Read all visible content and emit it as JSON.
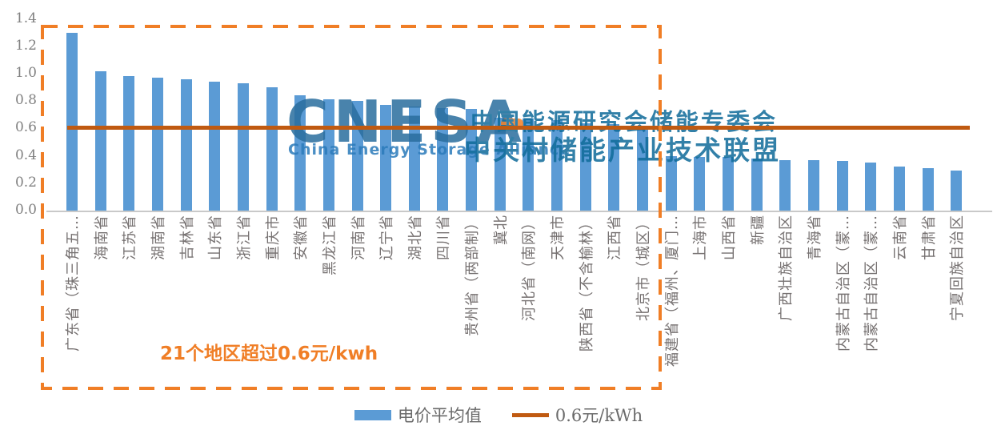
{
  "chart_data": {
    "type": "bar",
    "title": "",
    "categories": [
      "广东省（珠三角五…",
      "海南省",
      "江苏省",
      "湖南省",
      "吉林省",
      "山东省",
      "浙江省",
      "重庆市",
      "安徽省",
      "黑龙江省",
      "河南省",
      "辽宁省",
      "湖北省",
      "四川省",
      "贵州省（两部制）",
      "冀北",
      "河北省（南网）",
      "天津市",
      "陕西省（不含榆林）",
      "江西省",
      "北京市（城区）",
      "福建省（福州、厦门…",
      "上海市",
      "山西省",
      "新疆",
      "广西壮族自治区",
      "青海省",
      "内蒙古自治区（蒙…",
      "内蒙古自治区（蒙…",
      "云南省",
      "甘肃省",
      "宁夏回族自治区"
    ],
    "values": [
      1.3,
      1.02,
      0.98,
      0.97,
      0.96,
      0.94,
      0.93,
      0.9,
      0.84,
      0.81,
      0.8,
      0.77,
      0.76,
      0.75,
      0.74,
      0.68,
      0.67,
      0.66,
      0.64,
      0.63,
      0.62,
      0.4,
      0.39,
      0.39,
      0.38,
      0.37,
      0.37,
      0.36,
      0.35,
      0.32,
      0.31,
      0.29
    ],
    "xlabel": "",
    "ylabel": "",
    "ylim": [
      0,
      1.4
    ],
    "y_ticks": [
      "0.0",
      "0.2",
      "0.4",
      "0.6",
      "0.8",
      "1.0",
      "1.2",
      "1.4"
    ],
    "grid": false,
    "legend_position": "bottom",
    "reference_line": {
      "value": 0.6,
      "label": "0.6元/kWh"
    },
    "highlight_box": {
      "covers_first_n_bars": 21,
      "style": "orange-dashed"
    },
    "annotation": "21个地区超过0.6元/kwh"
  },
  "legend": {
    "bar_label": "电价平均值",
    "line_label": "0.6元/kWh"
  },
  "watermark": {
    "logo": "CNESA",
    "subtitle": "China Energy Storage Alliance",
    "line1": "中国能源研究会储能专委会",
    "line2": "中关村储能产业技术联盟"
  },
  "colors": {
    "bar": "#5B9BD5",
    "reference_line": "#C05A11",
    "highlight_box": "#F07E26",
    "annotation": "#F07E26",
    "watermark_logo": "#2A6E9E",
    "watermark_subtitle": "#2B7BBA",
    "watermark_cn": "#0F6B9A",
    "axis_text": "#808080",
    "x_label_text": "#767171"
  }
}
